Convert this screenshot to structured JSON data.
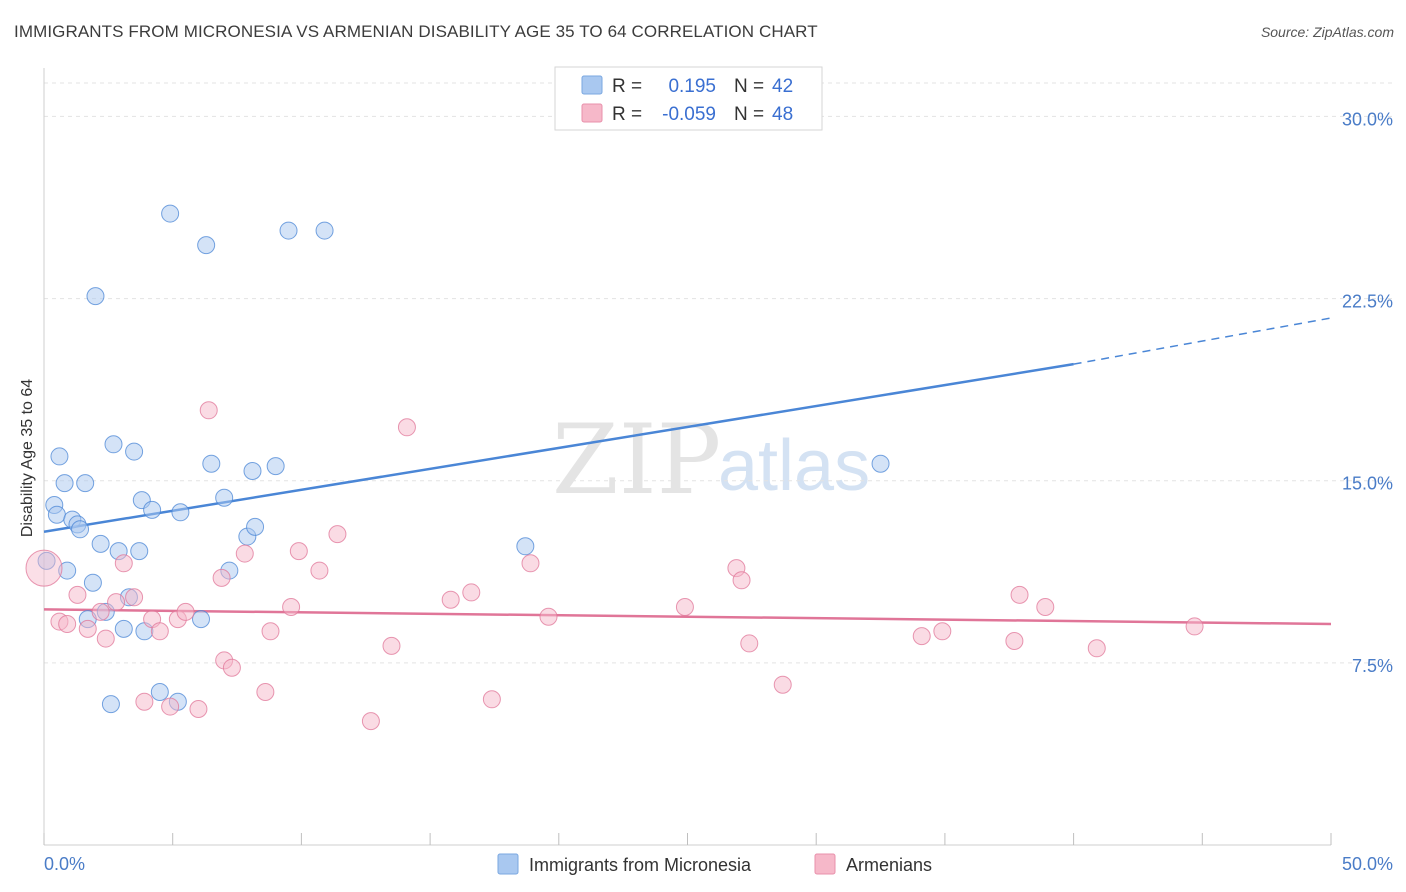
{
  "header": {
    "title": "IMMIGRANTS FROM MICRONESIA VS ARMENIAN DISABILITY AGE 35 TO 64 CORRELATION CHART",
    "source": "Source: ZipAtlas.com"
  },
  "watermark": {
    "zip": "ZIP",
    "atlas": "atlas"
  },
  "legend": {
    "rows": [
      {
        "r_label": "R =",
        "r_value": "0.195",
        "n_label": "N =",
        "n_value": "42",
        "color": "#a9c8f0"
      },
      {
        "r_label": "R =",
        "r_value": "-0.059",
        "n_label": "N =",
        "n_value": "48",
        "color": "#f6b8c9"
      }
    ]
  },
  "bottom_legend": {
    "items": [
      {
        "label": "Immigrants from Micronesia",
        "color": "#a9c8f0"
      },
      {
        "label": "Armenians",
        "color": "#f6b8c9"
      }
    ]
  },
  "chart_data": {
    "type": "scatter",
    "title": "IMMIGRANTS FROM MICRONESIA VS ARMENIAN DISABILITY AGE 35 TO 64 CORRELATION CHART",
    "xlabel": "",
    "ylabel": "Disability Age 35 to 64",
    "xlim": [
      0,
      50
    ],
    "ylim": [
      0,
      31.5
    ],
    "x_tick_labels": [
      "0.0%",
      "50.0%"
    ],
    "y_ticks": [
      7.5,
      15.0,
      22.5,
      30.0
    ],
    "y_tick_labels": [
      "7.5%",
      "15.0%",
      "22.5%",
      "30.0%"
    ],
    "grid": true,
    "legend_position": "top-center",
    "series": [
      {
        "name": "Immigrants from Micronesia",
        "color": "#4a86d6",
        "fill": "#a9c8f0",
        "points": [
          [
            0.1,
            11.7
          ],
          [
            0.4,
            14.0
          ],
          [
            0.5,
            13.6
          ],
          [
            0.6,
            16.0
          ],
          [
            0.8,
            14.9
          ],
          [
            0.9,
            11.3
          ],
          [
            1.1,
            13.4
          ],
          [
            1.3,
            13.2
          ],
          [
            1.4,
            13.0
          ],
          [
            1.6,
            14.9
          ],
          [
            1.7,
            9.3
          ],
          [
            1.9,
            10.8
          ],
          [
            2.0,
            22.6
          ],
          [
            2.2,
            12.4
          ],
          [
            2.4,
            9.6
          ],
          [
            2.6,
            5.8
          ],
          [
            2.7,
            16.5
          ],
          [
            2.9,
            12.1
          ],
          [
            3.1,
            8.9
          ],
          [
            3.3,
            10.2
          ],
          [
            3.5,
            16.2
          ],
          [
            3.7,
            12.1
          ],
          [
            3.8,
            14.2
          ],
          [
            3.9,
            8.8
          ],
          [
            4.2,
            13.8
          ],
          [
            4.5,
            6.3
          ],
          [
            4.9,
            26.0
          ],
          [
            5.2,
            5.9
          ],
          [
            5.3,
            13.7
          ],
          [
            6.1,
            9.3
          ],
          [
            6.3,
            24.7
          ],
          [
            6.5,
            15.7
          ],
          [
            7.0,
            14.3
          ],
          [
            7.2,
            11.3
          ],
          [
            7.9,
            12.7
          ],
          [
            8.1,
            15.4
          ],
          [
            8.2,
            13.1
          ],
          [
            9.0,
            15.6
          ],
          [
            9.5,
            25.3
          ],
          [
            10.9,
            25.3
          ],
          [
            18.7,
            12.3
          ],
          [
            32.5,
            15.7
          ]
        ]
      },
      {
        "name": "Armenians",
        "color": "#e07598",
        "fill": "#f6b8c9",
        "points": [
          [
            0.0,
            11.4
          ],
          [
            0.6,
            9.2
          ],
          [
            0.9,
            9.1
          ],
          [
            1.3,
            10.3
          ],
          [
            1.7,
            8.9
          ],
          [
            2.2,
            9.6
          ],
          [
            2.4,
            8.5
          ],
          [
            2.8,
            10.0
          ],
          [
            3.1,
            11.6
          ],
          [
            3.5,
            10.2
          ],
          [
            3.9,
            5.9
          ],
          [
            4.2,
            9.3
          ],
          [
            4.5,
            8.8
          ],
          [
            4.9,
            5.7
          ],
          [
            5.2,
            9.3
          ],
          [
            5.5,
            9.6
          ],
          [
            6.0,
            5.6
          ],
          [
            6.4,
            17.9
          ],
          [
            6.9,
            11.0
          ],
          [
            7.0,
            7.6
          ],
          [
            7.3,
            7.3
          ],
          [
            7.8,
            12.0
          ],
          [
            8.6,
            6.3
          ],
          [
            8.8,
            8.8
          ],
          [
            9.6,
            9.8
          ],
          [
            9.9,
            12.1
          ],
          [
            10.7,
            11.3
          ],
          [
            11.4,
            12.8
          ],
          [
            12.7,
            5.1
          ],
          [
            13.5,
            8.2
          ],
          [
            14.1,
            17.2
          ],
          [
            15.8,
            10.1
          ],
          [
            16.6,
            10.4
          ],
          [
            17.4,
            6.0
          ],
          [
            18.9,
            11.6
          ],
          [
            19.6,
            9.4
          ],
          [
            24.9,
            9.8
          ],
          [
            26.9,
            11.4
          ],
          [
            27.1,
            10.9
          ],
          [
            27.4,
            8.3
          ],
          [
            28.7,
            6.6
          ],
          [
            34.1,
            8.6
          ],
          [
            34.9,
            8.8
          ],
          [
            37.7,
            8.4
          ],
          [
            37.9,
            10.3
          ],
          [
            38.9,
            9.8
          ],
          [
            40.9,
            8.1
          ],
          [
            44.7,
            9.0
          ]
        ]
      }
    ],
    "trend_lines": [
      {
        "series": "Immigrants from Micronesia",
        "x": [
          0,
          40
        ],
        "y": [
          12.9,
          19.8
        ],
        "dashed_extension_to_x": 50,
        "dashed_y_end": 21.7
      },
      {
        "series": "Armenians",
        "x": [
          0,
          50
        ],
        "y": [
          9.7,
          9.1
        ]
      }
    ]
  }
}
